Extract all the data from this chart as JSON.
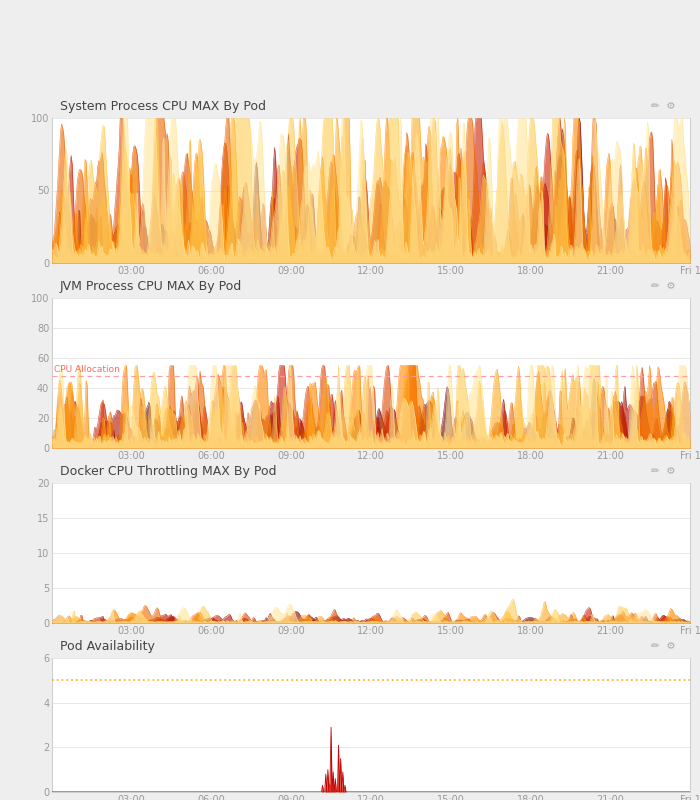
{
  "panels": [
    {
      "title": "System Process CPU MAX By Pod",
      "ylim": [
        0,
        100
      ],
      "yticks": [
        0,
        50,
        100
      ],
      "data_type": "system_cpu"
    },
    {
      "title": "JVM Process CPU MAX By Pod",
      "ylim": [
        0,
        100
      ],
      "yticks": [
        0,
        20,
        40,
        60,
        80,
        100
      ],
      "cpu_allocation_value": 48,
      "cpu_allocation_label": "CPU Allocation",
      "data_type": "jvm_cpu"
    },
    {
      "title": "Docker CPU Throttling MAX By Pod",
      "ylim": [
        0,
        20
      ],
      "yticks": [
        0,
        5,
        10,
        15,
        20
      ],
      "data_type": "throttling"
    },
    {
      "title": "Pod Availability",
      "ylim": [
        0,
        6
      ],
      "yticks": [
        0,
        2,
        4,
        6
      ],
      "data_type": "availability"
    }
  ],
  "xtick_labels": [
    "03:00",
    "06:00",
    "09:00",
    "12:00",
    "15:00",
    "18:00",
    "21:00",
    "Fri 1"
  ],
  "colors_dark_to_light": [
    "#6B0000",
    "#8B0000",
    "#AA1100",
    "#CC2200",
    "#DD4400",
    "#EE6600",
    "#FF8800",
    "#FFAA22",
    "#FFCC55",
    "#FFE599"
  ],
  "bg_color": "#eeeeee",
  "panel_bg": "#ffffff",
  "border_color": "#cccccc",
  "title_color": "#444444",
  "tick_color": "#999999",
  "grid_color": "#e8e8e8",
  "title_bar_color": "#f8f8f8"
}
